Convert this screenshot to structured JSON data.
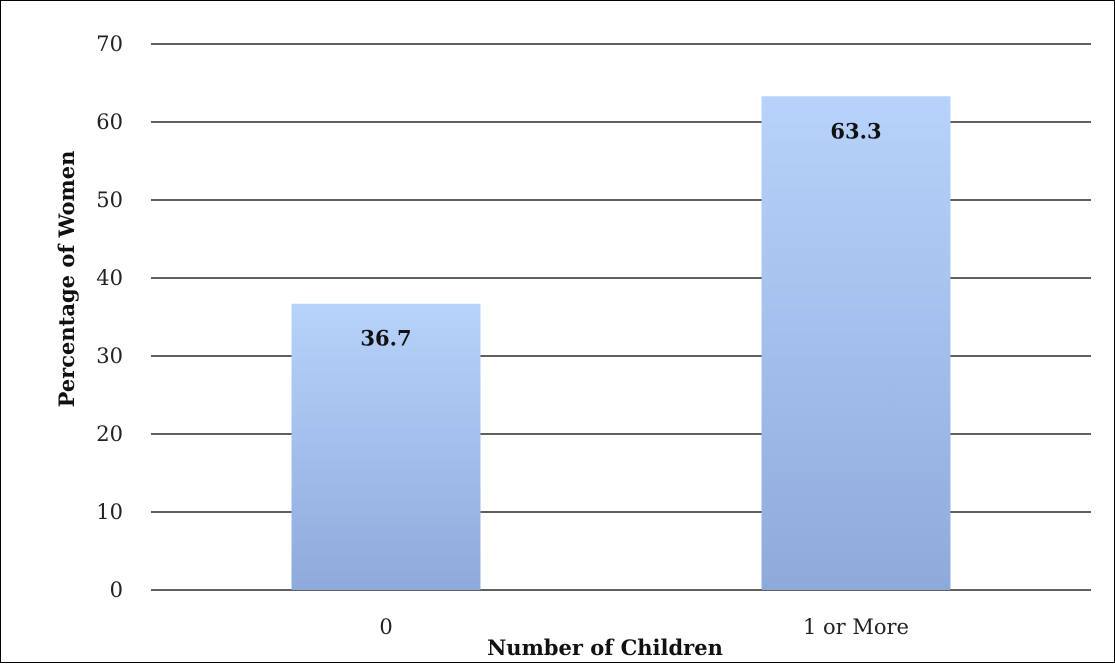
{
  "chart_data": {
    "type": "bar",
    "categories": [
      "0",
      "1 or More"
    ],
    "values": [
      36.7,
      63.3
    ],
    "data_labels": [
      "36.7",
      "63.3"
    ],
    "title": "",
    "xlabel": "Number of  Children",
    "ylabel": "Percentage of  Women",
    "ylim": [
      0,
      70
    ],
    "yticks": [
      0,
      10,
      20,
      30,
      40,
      50,
      60,
      70
    ],
    "grid": true,
    "legend": "none",
    "bar_color_top": "#b7d3fb",
    "bar_color_bottom": "#8eaadb"
  }
}
